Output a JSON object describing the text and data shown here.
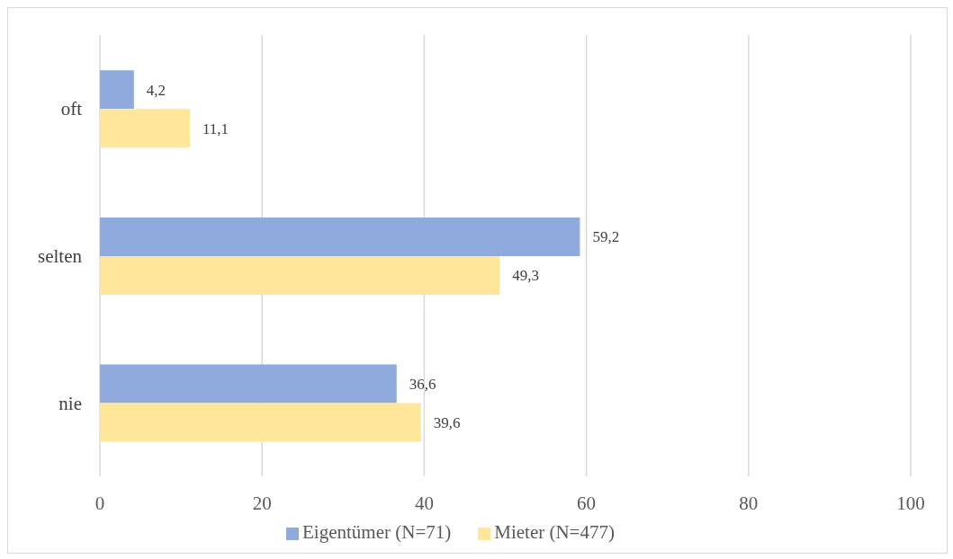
{
  "chart_data": {
    "type": "bar",
    "orientation": "horizontal",
    "categories": [
      "oft",
      "selten",
      "nie"
    ],
    "series": [
      {
        "name": "Eigentümer (N=71)",
        "color": "#8faadc",
        "values": [
          4.2,
          59.2,
          36.6
        ],
        "value_labels": [
          "4,2",
          "59,2",
          "36,6"
        ]
      },
      {
        "name": "Mieter (N=477)",
        "color": "#ffe699",
        "values": [
          11.1,
          49.3,
          39.6
        ],
        "value_labels": [
          "11,1",
          "49,3",
          "39,6"
        ]
      }
    ],
    "xlim": [
      0,
      100
    ],
    "xticks": [
      0,
      20,
      40,
      60,
      80,
      100
    ],
    "grid": "x",
    "legend": "bottom"
  }
}
